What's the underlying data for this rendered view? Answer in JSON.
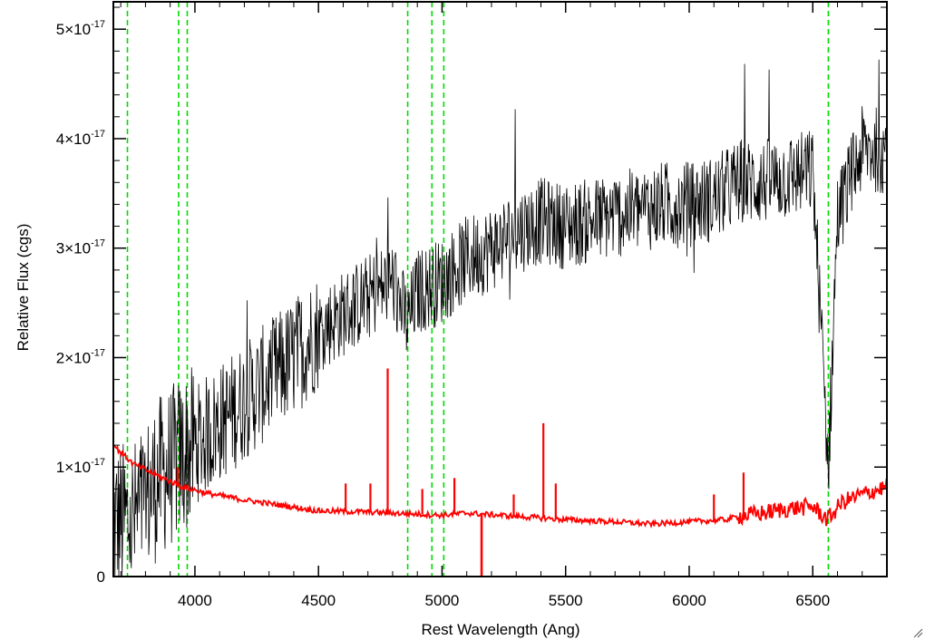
{
  "chart_data": {
    "type": "line",
    "title": "",
    "xlabel": "Rest Wavelength (Ang)",
    "ylabel": "Relative Flux (cgs)",
    "xlim": [
      3670,
      6800
    ],
    "ylim": [
      0,
      5.25e-17
    ],
    "x_ticks": [
      4000,
      4500,
      5000,
      5500,
      6000,
      6500
    ],
    "x_tick_labels": [
      "4000",
      "4500",
      "5000",
      "5500",
      "6000",
      "6500"
    ],
    "y_ticks": [
      0,
      1e-17,
      2e-17,
      3e-17,
      4e-17,
      5e-17
    ],
    "y_tick_labels": [
      {
        "mantissa": "0",
        "exponent": ""
      },
      {
        "mantissa": "1×10",
        "exponent": "-17"
      },
      {
        "mantissa": "2×10",
        "exponent": "-17"
      },
      {
        "mantissa": "3×10",
        "exponent": "-17"
      },
      {
        "mantissa": "4×10",
        "exponent": "-17"
      },
      {
        "mantissa": "5×10",
        "exponent": "-17"
      }
    ],
    "grid": false,
    "legend": "none",
    "series": [
      {
        "color": "#000000",
        "style": "noisy-spectrum",
        "x": [
          3670,
          3750,
          3850,
          3950,
          4000,
          4100,
          4200,
          4300,
          4400,
          4500,
          4600,
          4700,
          4800,
          4860,
          4900,
          5000,
          5100,
          5200,
          5300,
          5400,
          5500,
          5600,
          5700,
          5800,
          5900,
          6000,
          6100,
          6200,
          6300,
          6400,
          6500,
          6540,
          6563,
          6600,
          6700,
          6800
        ],
        "y": [
          5e-18,
          5e-18,
          9e-18,
          1.1e-17,
          1.2e-17,
          1.4e-17,
          1.6e-17,
          1.8e-17,
          2e-17,
          2.25e-17,
          2.4e-17,
          2.55e-17,
          2.7e-17,
          2.3e-17,
          2.6e-17,
          2.7e-17,
          2.9e-17,
          3e-17,
          3.15e-17,
          3.25e-17,
          3.2e-17,
          3.25e-17,
          3.3e-17,
          3.35e-17,
          3.4e-17,
          3.4e-17,
          3.45e-17,
          3.6e-17,
          3.6e-17,
          3.65e-17,
          3.7e-17,
          2e-17,
          1e-17,
          3.3e-17,
          3.9e-17,
          3.9e-17
        ]
      },
      {
        "color": "#ff0000",
        "style": "smooth-spectrum",
        "x": [
          3670,
          3750,
          3850,
          3950,
          4050,
          4200,
          4350,
          4500,
          4700,
          4900,
          5000,
          5100,
          5300,
          5500,
          5700,
          5850,
          6000,
          6150,
          6200,
          6300,
          6400,
          6500,
          6560,
          6620,
          6700,
          6800
        ],
        "y": [
          1.2e-17,
          1.03e-17,
          9.2e-18,
          8.2e-18,
          7.6e-18,
          7e-18,
          6.5e-18,
          6e-18,
          5.9e-18,
          5.7e-18,
          5.6e-18,
          5.8e-18,
          5.5e-18,
          5.2e-18,
          5e-18,
          4.8e-18,
          5e-18,
          5.2e-18,
          5.5e-18,
          5.8e-18,
          6.2e-18,
          6.4e-18,
          5.2e-18,
          6.8e-18,
          7.5e-18,
          8.2e-18
        ]
      }
    ],
    "emission_spikes": {
      "color": "#ff0000",
      "x": [
        3930,
        4610,
        4710,
        4780,
        4920,
        5050,
        5290,
        5410,
        5460,
        6100,
        6220
      ],
      "y_top": [
        1e-17,
        8.5e-18,
        8.5e-18,
        1.9e-17,
        8e-18,
        9e-18,
        7.5e-18,
        1.4e-17,
        8.5e-18,
        7.5e-18,
        9.5e-18
      ]
    },
    "absorption_dip": {
      "color": "#ff0000",
      "x": 5160,
      "y_bottom": 0
    },
    "reference_lines": {
      "color": "#00dd00",
      "style": "dashed",
      "x": [
        3727,
        3934,
        3969,
        4861,
        4959,
        5007,
        6563
      ]
    }
  }
}
